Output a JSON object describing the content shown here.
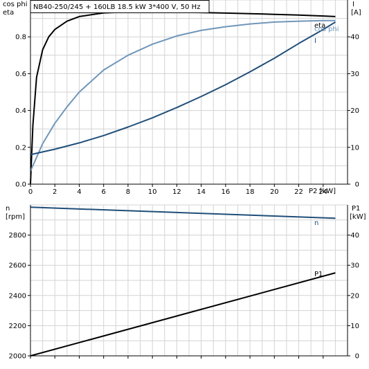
{
  "title": "NB40-250/245 + 160LB   18.5 kW   3*400 V, 50 Hz",
  "chart_data": [
    {
      "type": "line",
      "left_axis_label": [
        "cos phi",
        "eta"
      ],
      "right_axis_label": [
        "I",
        "[A]"
      ],
      "x_axis_label": "P2 [kW]",
      "xlim": [
        0,
        26
      ],
      "ylim_left": [
        0,
        1.0
      ],
      "ylim_right": [
        0,
        50
      ],
      "x_ticks": [
        0,
        2,
        4,
        6,
        8,
        10,
        12,
        14,
        16,
        18,
        20,
        22,
        24
      ],
      "y_ticks_left": [
        0.0,
        0.2,
        0.4,
        0.6,
        0.8
      ],
      "y_ticks_right": [
        0,
        10,
        20,
        30,
        40
      ],
      "grid": true,
      "series": [
        {
          "name": "eta",
          "axis": "left",
          "color": "#000000",
          "x": [
            0,
            0.2,
            0.5,
            1.0,
            1.5,
            2.0,
            3.0,
            4.0,
            6.0,
            8.0,
            10.0,
            12.0,
            14.0,
            16.0,
            18.0,
            20.0,
            22.0,
            24.0,
            25.0
          ],
          "y": [
            0.0,
            0.32,
            0.58,
            0.73,
            0.8,
            0.84,
            0.885,
            0.91,
            0.93,
            0.935,
            0.935,
            0.934,
            0.932,
            0.929,
            0.926,
            0.922,
            0.918,
            0.913,
            0.91
          ]
        },
        {
          "name": "cos phi",
          "axis": "left",
          "color": "#6f96b9",
          "x": [
            0,
            1.0,
            2.0,
            3.0,
            4.0,
            6.0,
            8.0,
            10.0,
            12.0,
            14.0,
            16.0,
            18.0,
            20.0,
            22.0,
            24.0,
            25.0
          ],
          "y": [
            0.07,
            0.22,
            0.33,
            0.42,
            0.5,
            0.62,
            0.7,
            0.76,
            0.805,
            0.835,
            0.855,
            0.87,
            0.88,
            0.885,
            0.888,
            0.888
          ]
        },
        {
          "name": "I",
          "axis": "right",
          "color": "#1f4e79",
          "x": [
            0,
            2.0,
            4.0,
            6.0,
            8.0,
            10.0,
            12.0,
            14.0,
            16.0,
            18.0,
            20.0,
            22.0,
            24.0,
            25.0
          ],
          "y": [
            8.0,
            9.5,
            11.2,
            13.2,
            15.5,
            18.0,
            20.8,
            23.8,
            27.0,
            30.5,
            34.2,
            38.2,
            42.0,
            44.0
          ]
        }
      ]
    },
    {
      "type": "line",
      "left_axis_label": [
        "n",
        "[rpm]"
      ],
      "right_axis_label": [
        "P1",
        "[kW]"
      ],
      "xlim": [
        0,
        26
      ],
      "ylim_left": [
        2000,
        3000
      ],
      "ylim_right": [
        0,
        50
      ],
      "x_ticks": [
        0,
        2,
        4,
        6,
        8,
        10,
        12,
        14,
        16,
        18,
        20,
        22,
        24
      ],
      "y_ticks_left": [
        2000,
        2200,
        2400,
        2600,
        2800
      ],
      "y_ticks_right": [
        0,
        10,
        20,
        30,
        40
      ],
      "grid": true,
      "series": [
        {
          "name": "n",
          "axis": "left",
          "color": "#1f4e79",
          "x": [
            0,
            25.0
          ],
          "y": [
            2985,
            2912
          ]
        },
        {
          "name": "P1",
          "axis": "right",
          "color": "#000000",
          "x": [
            0,
            25.0
          ],
          "y": [
            0.0,
            27.5
          ]
        }
      ]
    }
  ]
}
